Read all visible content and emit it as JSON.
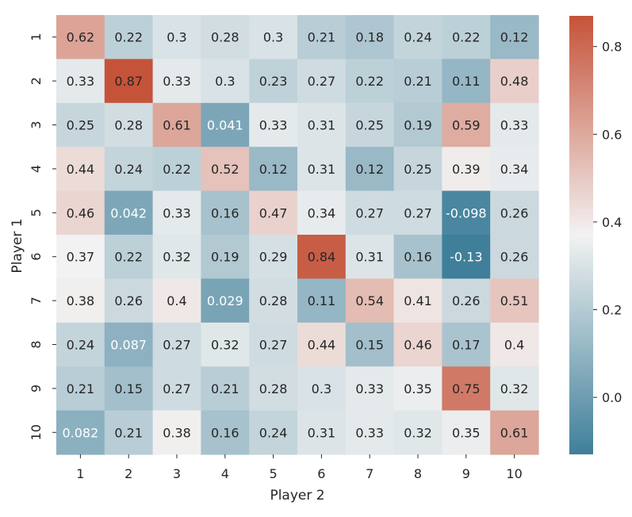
{
  "chart_data": {
    "type": "heatmap",
    "title": "",
    "xlabel": "Player 2",
    "ylabel": "Player 1",
    "x_categories": [
      "1",
      "2",
      "3",
      "4",
      "5",
      "6",
      "7",
      "8",
      "9",
      "10"
    ],
    "y_categories": [
      "1",
      "2",
      "3",
      "4",
      "5",
      "6",
      "7",
      "8",
      "9",
      "10"
    ],
    "values": [
      [
        0.62,
        0.22,
        0.3,
        0.28,
        0.3,
        0.21,
        0.18,
        0.24,
        0.22,
        0.12
      ],
      [
        0.33,
        0.87,
        0.33,
        0.3,
        0.23,
        0.27,
        0.22,
        0.21,
        0.11,
        0.48
      ],
      [
        0.25,
        0.28,
        0.61,
        0.041,
        0.33,
        0.31,
        0.25,
        0.19,
        0.59,
        0.33
      ],
      [
        0.44,
        0.24,
        0.22,
        0.52,
        0.12,
        0.31,
        0.12,
        0.25,
        0.39,
        0.34
      ],
      [
        0.46,
        0.042,
        0.33,
        0.16,
        0.47,
        0.34,
        0.27,
        0.27,
        -0.098,
        0.26
      ],
      [
        0.37,
        0.22,
        0.32,
        0.19,
        0.29,
        0.84,
        0.31,
        0.16,
        -0.13,
        0.26
      ],
      [
        0.38,
        0.26,
        0.4,
        0.029,
        0.28,
        0.11,
        0.54,
        0.41,
        0.26,
        0.51
      ],
      [
        0.24,
        0.087,
        0.27,
        0.32,
        0.27,
        0.44,
        0.15,
        0.46,
        0.17,
        0.4
      ],
      [
        0.21,
        0.15,
        0.27,
        0.21,
        0.28,
        0.3,
        0.33,
        0.35,
        0.75,
        0.32
      ],
      [
        0.082,
        0.21,
        0.38,
        0.16,
        0.24,
        0.31,
        0.33,
        0.32,
        0.35,
        0.61
      ]
    ],
    "cell_labels": [
      [
        "0.62",
        "0.22",
        "0.3",
        "0.28",
        "0.3",
        "0.21",
        "0.18",
        "0.24",
        "0.22",
        "0.12"
      ],
      [
        "0.33",
        "0.87",
        "0.33",
        "0.3",
        "0.23",
        "0.27",
        "0.22",
        "0.21",
        "0.11",
        "0.48"
      ],
      [
        "0.25",
        "0.28",
        "0.61",
        "0.041",
        "0.33",
        "0.31",
        "0.25",
        "0.19",
        "0.59",
        "0.33"
      ],
      [
        "0.44",
        "0.24",
        "0.22",
        "0.52",
        "0.12",
        "0.31",
        "0.12",
        "0.25",
        "0.39",
        "0.34"
      ],
      [
        "0.46",
        "0.042",
        "0.33",
        "0.16",
        "0.47",
        "0.34",
        "0.27",
        "0.27",
        "-0.098",
        "0.26"
      ],
      [
        "0.37",
        "0.22",
        "0.32",
        "0.19",
        "0.29",
        "0.84",
        "0.31",
        "0.16",
        "-0.13",
        "0.26"
      ],
      [
        "0.38",
        "0.26",
        "0.4",
        "0.029",
        "0.28",
        "0.11",
        "0.54",
        "0.41",
        "0.26",
        "0.51"
      ],
      [
        "0.24",
        "0.087",
        "0.27",
        "0.32",
        "0.27",
        "0.44",
        "0.15",
        "0.46",
        "0.17",
        "0.4"
      ],
      [
        "0.21",
        "0.15",
        "0.27",
        "0.21",
        "0.28",
        "0.3",
        "0.33",
        "0.35",
        "0.75",
        "0.32"
      ],
      [
        "0.082",
        "0.21",
        "0.38",
        "0.16",
        "0.24",
        "0.31",
        "0.33",
        "0.32",
        "0.35",
        "0.61"
      ]
    ],
    "colorbar": {
      "vmin": -0.13,
      "vmax": 0.87,
      "center": 0.37,
      "ticks": [
        0.0,
        0.2,
        0.4,
        0.6,
        0.8
      ],
      "tick_labels": [
        "0.0",
        "0.2",
        "0.4",
        "0.6",
        "0.8"
      ]
    },
    "colors": {
      "low": "#3f7f9a",
      "mid": "#f2f2f2",
      "high": "#c5533a",
      "text_dark": "#262626",
      "text_light": "#ffffff"
    },
    "legend_placement": "right"
  }
}
